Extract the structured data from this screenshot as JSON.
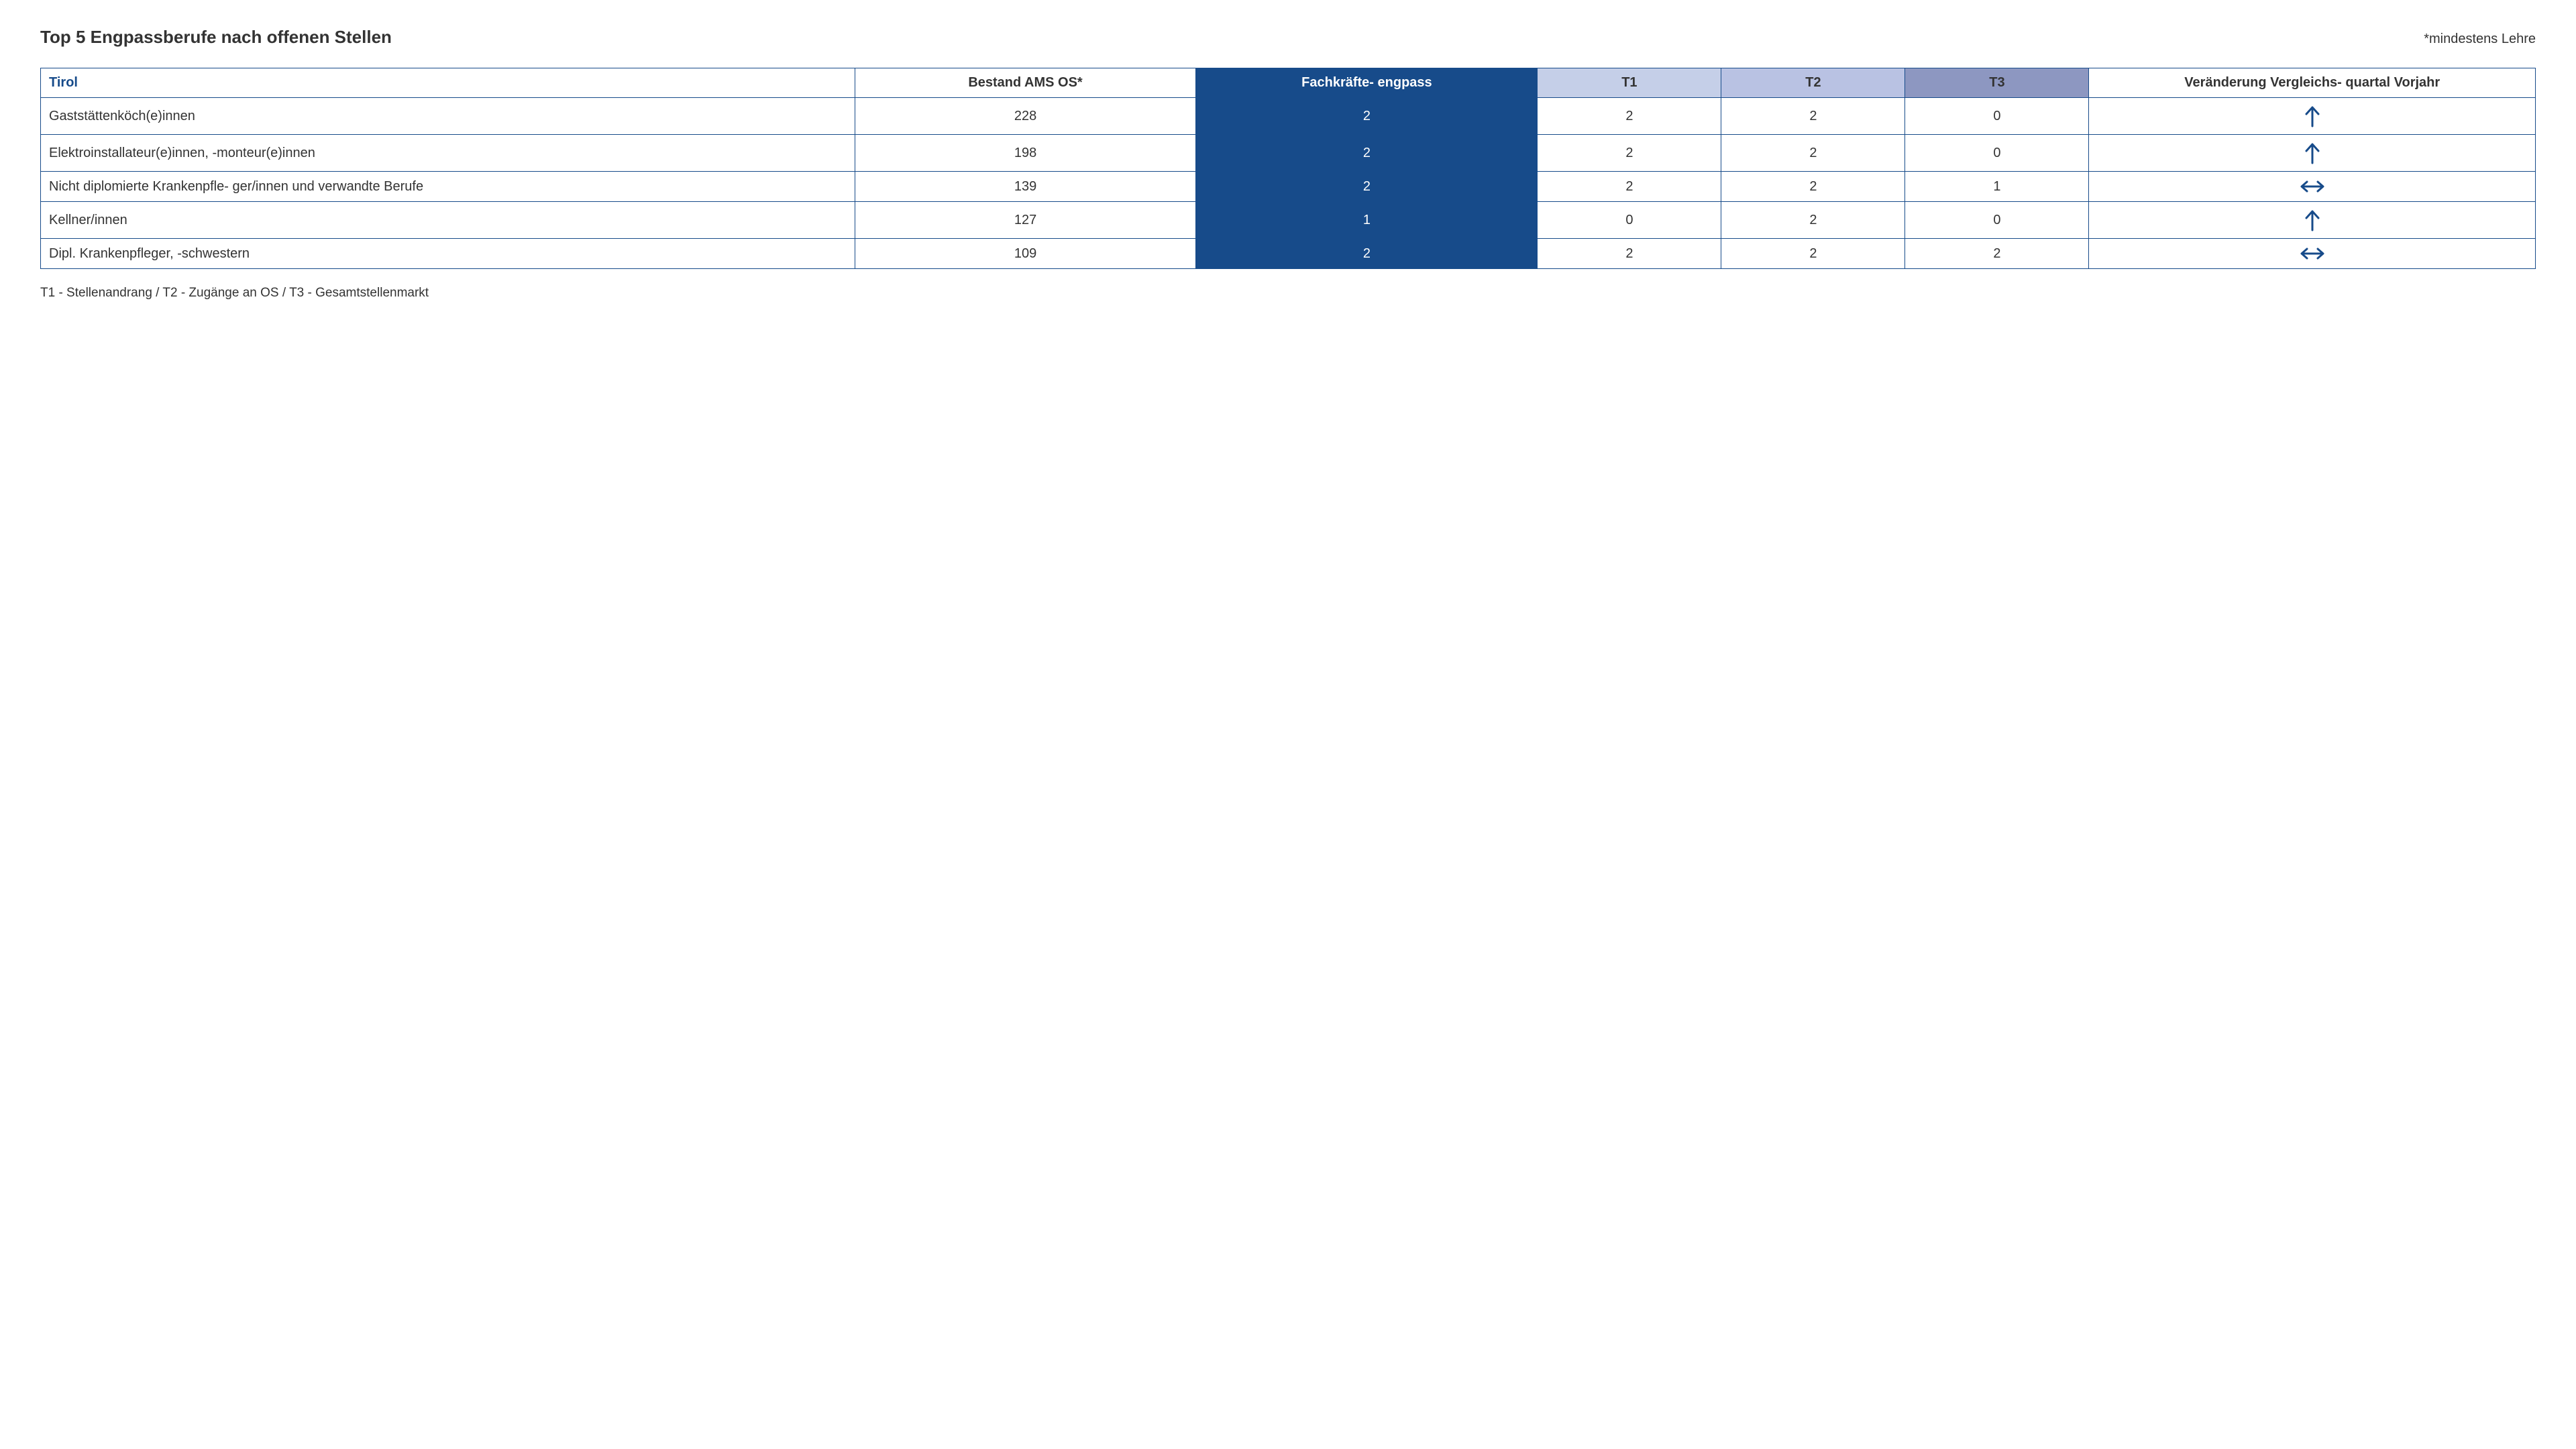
{
  "header": {
    "title": "Top 5 Engpassberufe nach offenen Stellen",
    "subtitle": "*mindestens Lehre"
  },
  "table": {
    "region": "Tirol",
    "columns": {
      "bestand": "Bestand AMS OS*",
      "engpass": "Fachkräfte- engpass",
      "t1": "T1",
      "t2": "T2",
      "t3": "T3",
      "change": "Veränderung Vergleichs- quartal Vorjahr"
    },
    "header_colors": {
      "engpass": "#174b8a",
      "t1": "#c5cfe8",
      "t2": "#b9c2e3",
      "t3": "#8d97c1"
    },
    "rows": [
      {
        "occupation": "Gaststättenköch(e)innen",
        "bestand": 228,
        "engpass": 2,
        "t1": 2,
        "t2": 2,
        "t3": 0,
        "change": "up"
      },
      {
        "occupation": "Elektroinstallateur(e)innen, -monteur(e)innen",
        "bestand": 198,
        "engpass": 2,
        "t1": 2,
        "t2": 2,
        "t3": 0,
        "change": "up"
      },
      {
        "occupation": "Nicht diplomierte Krankenpfle- ger/innen und verwandte Berufe",
        "bestand": 139,
        "engpass": 2,
        "t1": 2,
        "t2": 2,
        "t3": 1,
        "change": "same"
      },
      {
        "occupation": "Kellner/innen",
        "bestand": 127,
        "engpass": 1,
        "t1": 0,
        "t2": 2,
        "t3": 0,
        "change": "up"
      },
      {
        "occupation": "Dipl. Krankenpfleger, -schwestern",
        "bestand": 109,
        "engpass": 2,
        "t1": 2,
        "t2": 2,
        "t3": 2,
        "change": "same"
      }
    ]
  },
  "footnote": "T1 - Stellenandrang / T2 - Zugänge an OS / T3 - Gesamtstellenmarkt",
  "arrow_color": "#174b8a"
}
